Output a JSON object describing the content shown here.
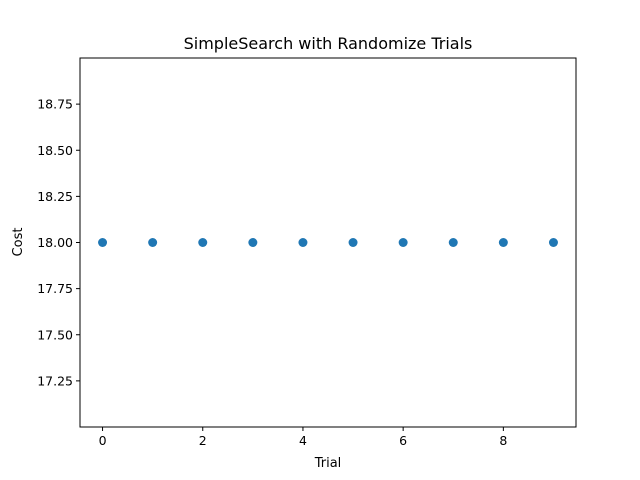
{
  "chart_data": {
    "type": "scatter",
    "title": "SimpleSearch with Randomize Trials",
    "xlabel": "Trial",
    "ylabel": "Cost",
    "x": [
      0,
      1,
      2,
      3,
      4,
      5,
      6,
      7,
      8,
      9
    ],
    "y": [
      18.0,
      18.0,
      18.0,
      18.0,
      18.0,
      18.0,
      18.0,
      18.0,
      18.0,
      18.0
    ],
    "xlim": [
      -0.45,
      9.45
    ],
    "ylim": [
      17.0,
      19.0
    ],
    "xticks": [
      0,
      2,
      4,
      6,
      8
    ],
    "xtick_labels": [
      "0",
      "2",
      "4",
      "6",
      "8"
    ],
    "yticks": [
      17.25,
      17.5,
      17.75,
      18.0,
      18.25,
      18.5,
      18.75
    ],
    "ytick_labels": [
      "17.25",
      "17.50",
      "17.75",
      "18.00",
      "18.25",
      "18.50",
      "18.75"
    ],
    "grid": false,
    "marker_color": "#1f77b4"
  }
}
